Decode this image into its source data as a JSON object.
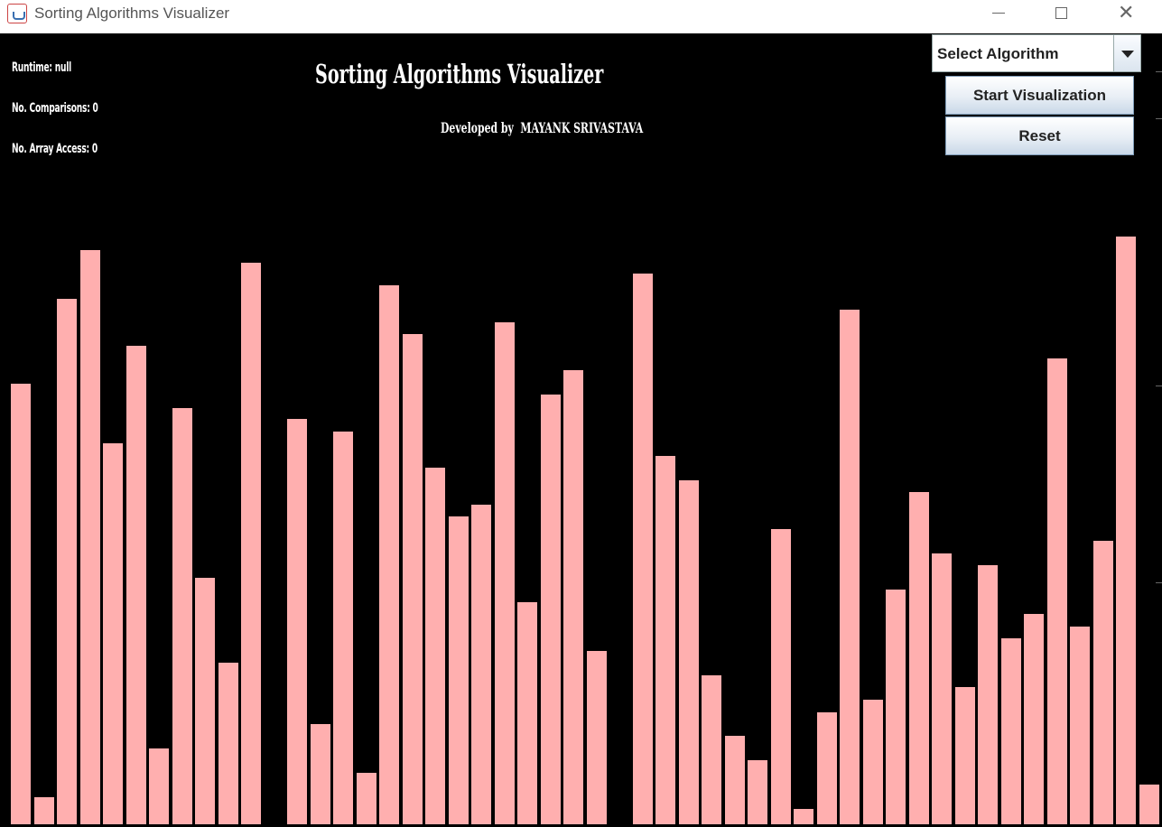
{
  "window": {
    "title": "Sorting Algorithms Visualizer"
  },
  "stats": {
    "runtime": "Runtime: null",
    "comparisons": "No. Comparisons: 0",
    "array_access": "No. Array Access: 0"
  },
  "header": {
    "title": "Sorting Algorithms Visualizer",
    "credit": "Developed by  MAYANK SRIVASTAVA"
  },
  "controls": {
    "algorithm_select": "Select Algorithm",
    "start_label": "Start Visualization",
    "reset_label": "Reset"
  },
  "colors": {
    "bar": "#ffafaf",
    "background": "#000000"
  },
  "icons": [
    "java-app-icon",
    "minimize-icon",
    "maximize-icon",
    "close-icon",
    "dropdown-arrow-icon"
  ],
  "array_values": [
    488,
    30,
    582,
    636,
    422,
    530,
    84,
    461,
    273,
    179,
    622,
    0,
    449,
    111,
    435,
    57,
    597,
    543,
    395,
    341,
    354,
    556,
    246,
    476,
    503,
    192,
    0,
    610,
    408,
    381,
    165,
    98,
    71,
    327,
    17,
    124,
    570,
    138,
    260,
    368,
    300,
    152,
    287,
    206,
    233,
    516,
    219,
    314,
    651,
    44
  ]
}
